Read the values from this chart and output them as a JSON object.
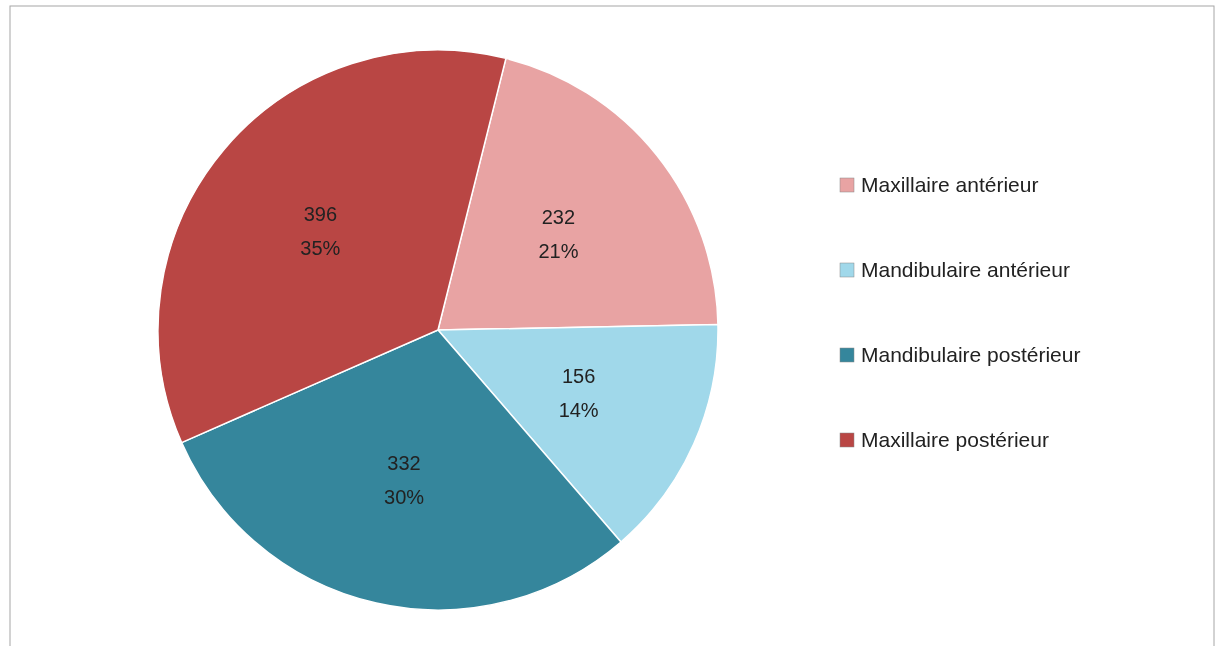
{
  "chart_data": {
    "type": "pie",
    "categories": [
      "Maxillaire antérieur",
      "Mandibulaire antérieur",
      "Mandibulaire postérieur",
      "Maxillaire postérieur"
    ],
    "values": [
      232,
      156,
      332,
      396
    ],
    "colors": [
      "#e8a3a3",
      "#a0d8ea",
      "#35869c",
      "#b94644"
    ],
    "value_labels": [
      "232\n21%",
      "156\n14%",
      "332\n30%",
      "396\n35%"
    ],
    "legend": "right"
  }
}
